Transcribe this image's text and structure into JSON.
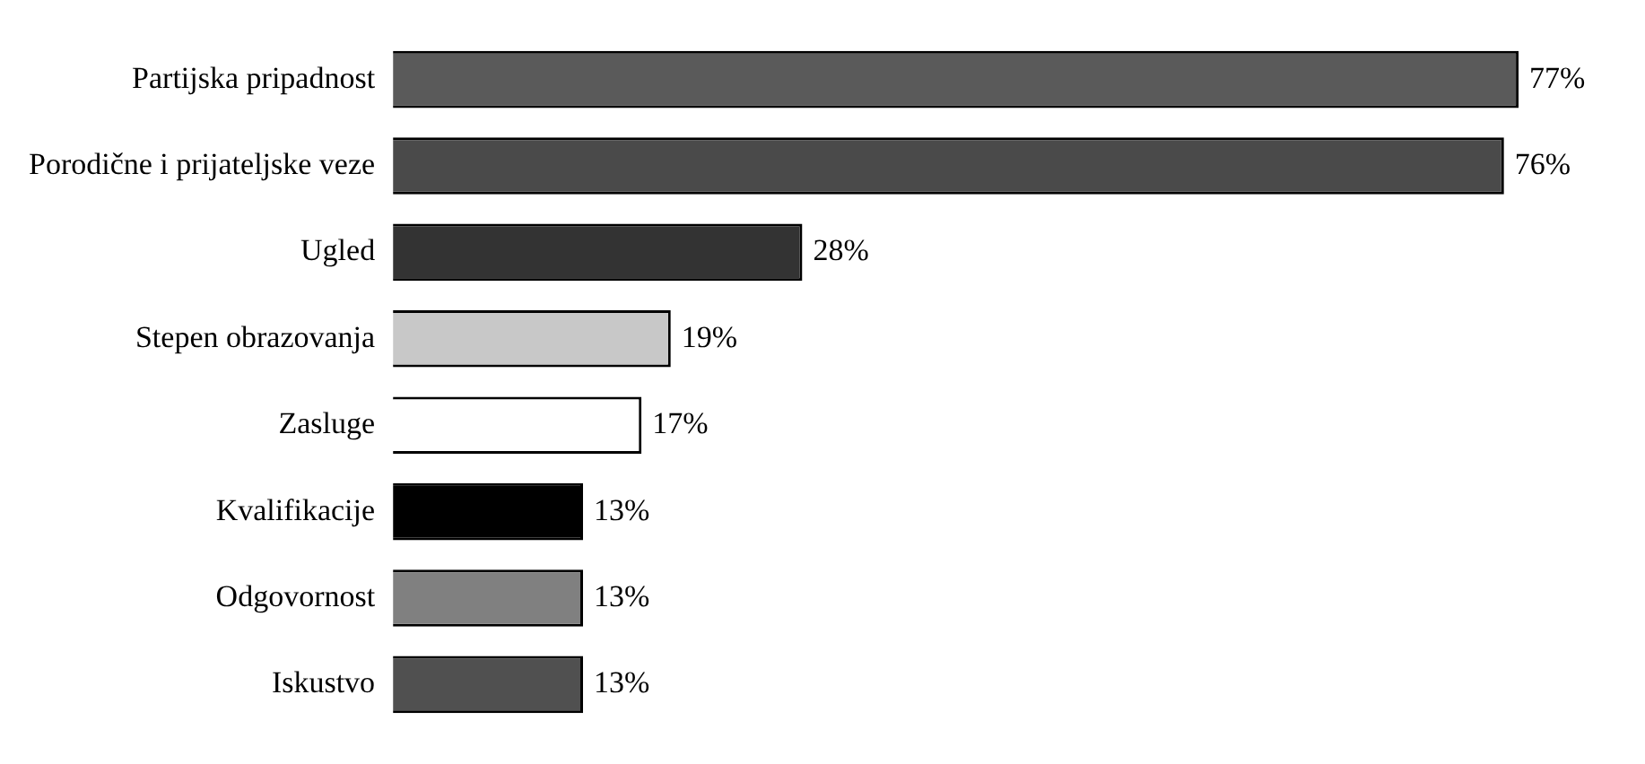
{
  "chart_data": {
    "type": "bar",
    "orientation": "horizontal",
    "categories": [
      "Partijska pripadnost",
      "Porodične i prijateljske veze",
      "Ugled",
      "Stepen obrazovanja",
      "Zasluge",
      "Kvalifikacije",
      "Odgovornost",
      "Iskustvo"
    ],
    "values": [
      77,
      76,
      28,
      19,
      17,
      13,
      13,
      13
    ],
    "value_labels": [
      "77%",
      "76%",
      "28%",
      "19%",
      "17%",
      "13%",
      "13%",
      "13%"
    ],
    "colors": [
      "#5a5a5a",
      "#4a4a4a",
      "#333333",
      "#c8c8c8",
      "#ffffff",
      "#000000",
      "#808080",
      "#505050"
    ],
    "legend": false
  }
}
